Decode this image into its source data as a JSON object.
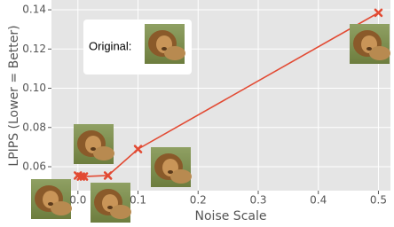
{
  "chart_data": {
    "type": "line",
    "x": [
      0,
      0.005,
      0.01,
      0.05,
      0.1,
      0.5
    ],
    "values": [
      0.0555,
      0.055,
      0.055,
      0.0555,
      0.069,
      0.1385
    ],
    "color": "#e24a33",
    "xlabel": "Noise Scale",
    "ylabel": "LPIPS (Lower = Better)",
    "annotation": "Original:",
    "xlim": [
      -0.044,
      0.52
    ],
    "ylim": [
      0.0478,
      0.145
    ],
    "xticks": [
      {
        "value": 0,
        "label": "0.0"
      },
      0.1,
      0.2,
      0.3,
      0.4,
      0.5
    ],
    "yticks": [
      0.06,
      0.08,
      {
        "value": 0.1,
        "label": "0.10"
      },
      0.12,
      0.14
    ],
    "grid": true
  }
}
